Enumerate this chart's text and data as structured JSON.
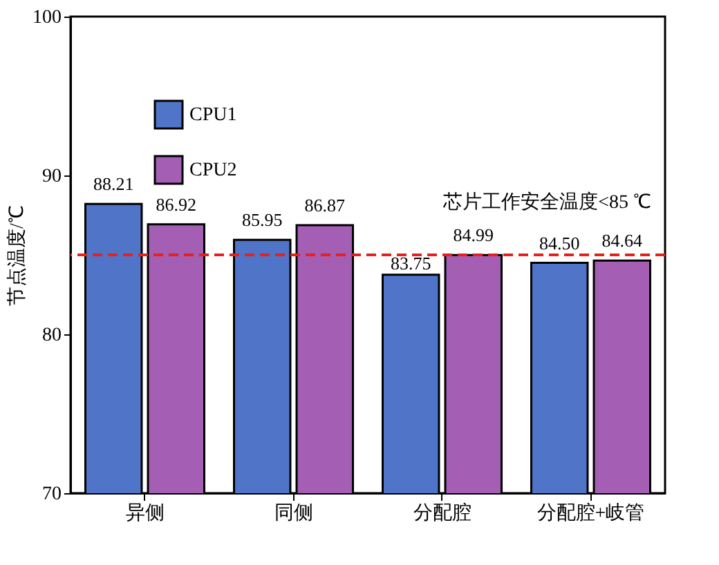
{
  "chart_data": {
    "type": "bar",
    "ylabel": "节点温度/℃",
    "categories": [
      "异侧",
      "同侧",
      "分配腔",
      "分配腔+岐管"
    ],
    "series": [
      {
        "name": "CPU1",
        "color": "#4f74c8",
        "values": [
          88.21,
          85.95,
          83.75,
          84.5
        ],
        "value_labels": [
          "88.21",
          "85.95",
          "83.75",
          "84.50"
        ]
      },
      {
        "name": "CPU2",
        "color": "#a45fb5",
        "values": [
          86.92,
          86.87,
          84.99,
          84.64
        ],
        "value_labels": [
          "86.92",
          "86.87",
          "84.99",
          "84.64"
        ]
      }
    ],
    "ylim": [
      70,
      100
    ],
    "yticks": [
      70,
      80,
      90,
      100
    ],
    "grid": false,
    "legend": "top left",
    "data_labels": true,
    "ref_lines": [
      {
        "axis": "y",
        "value": 85,
        "label": "芯片工作安全温度<85 ℃",
        "color": "#e8201c",
        "line_style": "dashed"
      }
    ]
  }
}
